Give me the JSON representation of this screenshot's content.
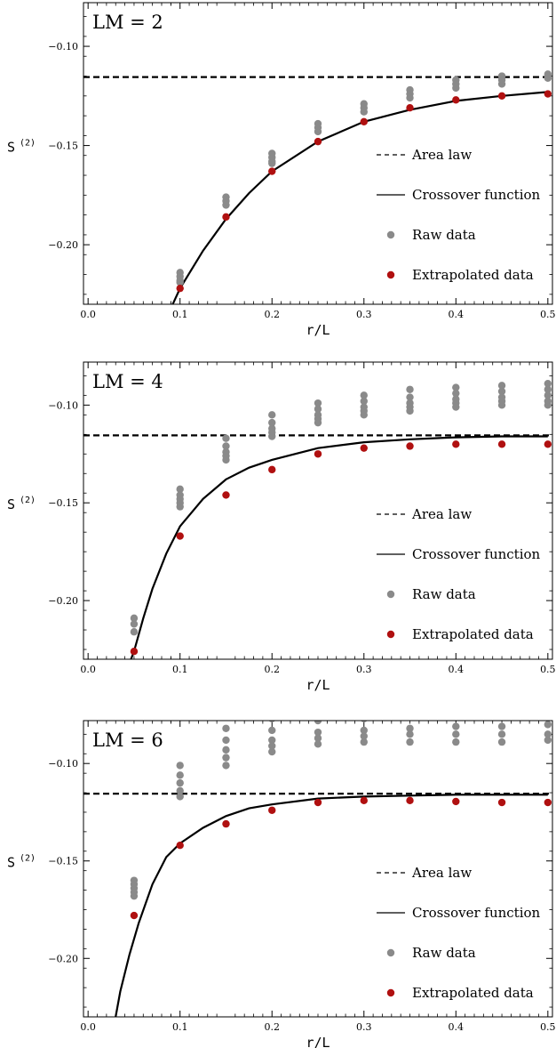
{
  "chart_data": [
    {
      "type": "scatter",
      "title": "LM = 2",
      "xlabel": "r/L",
      "ylabel": "S",
      "ylabel_superscript": "(2)",
      "xlim": [
        -0.005,
        0.505
      ],
      "ylim": [
        -0.23,
        -0.078
      ],
      "xticks": [
        "0.0",
        "0.1",
        "0.2",
        "0.3",
        "0.4",
        "0.5"
      ],
      "yticks": [
        "-0.10",
        "-0.15",
        "-0.20"
      ],
      "ytick_values": [
        -0.1,
        -0.15,
        -0.2
      ],
      "legend_position": "center-right",
      "area_law": -0.1155,
      "legend": {
        "area_law": "Area law",
        "crossover": "Crossover function",
        "raw": "Raw data",
        "extrapolated": "Extrapolated data"
      },
      "colors": {
        "raw": "#8a8a8a",
        "extrapolated": "#b01010",
        "line": "#000000"
      },
      "crossover": {
        "x": [
          0.09,
          0.1,
          0.125,
          0.15,
          0.175,
          0.2,
          0.25,
          0.3,
          0.35,
          0.4,
          0.45,
          0.5
        ],
        "y": [
          -0.232,
          -0.222,
          -0.203,
          -0.187,
          -0.174,
          -0.163,
          -0.148,
          -0.138,
          -0.132,
          -0.1275,
          -0.125,
          -0.123
        ]
      },
      "raw": {
        "x": [
          0.1,
          0.1,
          0.1,
          0.1,
          0.15,
          0.15,
          0.15,
          0.2,
          0.2,
          0.2,
          0.2,
          0.25,
          0.25,
          0.25,
          0.3,
          0.3,
          0.3,
          0.35,
          0.35,
          0.35,
          0.4,
          0.4,
          0.4,
          0.45,
          0.45,
          0.45,
          0.5,
          0.5
        ],
        "y": [
          -0.214,
          -0.216,
          -0.218,
          -0.219,
          -0.176,
          -0.178,
          -0.18,
          -0.154,
          -0.156,
          -0.158,
          -0.159,
          -0.139,
          -0.141,
          -0.143,
          -0.129,
          -0.131,
          -0.133,
          -0.122,
          -0.124,
          -0.126,
          -0.117,
          -0.119,
          -0.121,
          -0.115,
          -0.117,
          -0.119,
          -0.114,
          -0.116
        ]
      },
      "extrapolated": {
        "x": [
          0.1,
          0.15,
          0.2,
          0.25,
          0.3,
          0.35,
          0.4,
          0.45,
          0.5
        ],
        "y": [
          -0.222,
          -0.186,
          -0.163,
          -0.148,
          -0.138,
          -0.131,
          -0.127,
          -0.125,
          -0.124
        ]
      }
    },
    {
      "type": "scatter",
      "title": "LM = 4",
      "xlabel": "r/L",
      "ylabel": "S",
      "ylabel_superscript": "(2)",
      "xlim": [
        -0.005,
        0.505
      ],
      "ylim": [
        -0.23,
        -0.078
      ],
      "xticks": [
        "0.0",
        "0.1",
        "0.2",
        "0.3",
        "0.4",
        "0.5"
      ],
      "yticks": [
        "-0.10",
        "-0.15",
        "-0.20"
      ],
      "ytick_values": [
        -0.1,
        -0.15,
        -0.2
      ],
      "legend_position": "center-right",
      "area_law": -0.1155,
      "legend": {
        "area_law": "Area law",
        "crossover": "Crossover function",
        "raw": "Raw data",
        "extrapolated": "Extrapolated data"
      },
      "colors": {
        "raw": "#8a8a8a",
        "extrapolated": "#b01010",
        "line": "#000000"
      },
      "crossover": {
        "x": [
          0.045,
          0.05,
          0.06,
          0.07,
          0.085,
          0.1,
          0.125,
          0.15,
          0.175,
          0.2,
          0.25,
          0.3,
          0.35,
          0.4,
          0.45,
          0.5
        ],
        "y": [
          -0.232,
          -0.226,
          -0.209,
          -0.194,
          -0.176,
          -0.162,
          -0.148,
          -0.138,
          -0.132,
          -0.128,
          -0.122,
          -0.119,
          -0.1175,
          -0.1165,
          -0.116,
          -0.116
        ]
      },
      "raw": {
        "x": [
          0.05,
          0.05,
          0.05,
          0.1,
          0.1,
          0.1,
          0.1,
          0.1,
          0.15,
          0.15,
          0.15,
          0.15,
          0.15,
          0.2,
          0.2,
          0.2,
          0.2,
          0.2,
          0.25,
          0.25,
          0.25,
          0.25,
          0.25,
          0.3,
          0.3,
          0.3,
          0.3,
          0.3,
          0.35,
          0.35,
          0.35,
          0.35,
          0.35,
          0.4,
          0.4,
          0.4,
          0.4,
          0.4,
          0.45,
          0.45,
          0.45,
          0.45,
          0.45,
          0.5,
          0.5,
          0.5,
          0.5,
          0.5
        ],
        "y": [
          -0.209,
          -0.212,
          -0.216,
          -0.143,
          -0.146,
          -0.148,
          -0.15,
          -0.152,
          -0.117,
          -0.121,
          -0.124,
          -0.126,
          -0.128,
          -0.105,
          -0.109,
          -0.112,
          -0.114,
          -0.116,
          -0.099,
          -0.102,
          -0.105,
          -0.107,
          -0.109,
          -0.095,
          -0.098,
          -0.101,
          -0.103,
          -0.105,
          -0.092,
          -0.096,
          -0.099,
          -0.101,
          -0.103,
          -0.091,
          -0.094,
          -0.097,
          -0.099,
          -0.101,
          -0.09,
          -0.093,
          -0.096,
          -0.098,
          -0.1,
          -0.089,
          -0.092,
          -0.095,
          -0.098,
          -0.1
        ]
      },
      "extrapolated": {
        "x": [
          0.05,
          0.1,
          0.15,
          0.2,
          0.25,
          0.3,
          0.35,
          0.4,
          0.45,
          0.5
        ],
        "y": [
          -0.226,
          -0.167,
          -0.146,
          -0.133,
          -0.125,
          -0.122,
          -0.121,
          -0.12,
          -0.12,
          -0.12
        ]
      }
    },
    {
      "type": "scatter",
      "title": "LM = 6",
      "xlabel": "r/L",
      "ylabel": "S",
      "ylabel_superscript": "(2)",
      "xlim": [
        -0.005,
        0.505
      ],
      "ylim": [
        -0.23,
        -0.078
      ],
      "xticks": [
        "0.0",
        "0.1",
        "0.2",
        "0.3",
        "0.4",
        "0.5"
      ],
      "yticks": [
        "-0.10",
        "-0.15",
        "-0.20"
      ],
      "ytick_values": [
        -0.1,
        -0.15,
        -0.2
      ],
      "legend_position": "center-right",
      "area_law": -0.1155,
      "legend": {
        "area_law": "Area law",
        "crossover": "Crossover function",
        "raw": "Raw data",
        "extrapolated": "Extrapolated data"
      },
      "colors": {
        "raw": "#8a8a8a",
        "extrapolated": "#b01010",
        "line": "#000000"
      },
      "crossover": {
        "x": [
          0.03,
          0.035,
          0.045,
          0.055,
          0.07,
          0.085,
          0.1,
          0.125,
          0.15,
          0.175,
          0.2,
          0.25,
          0.3,
          0.35,
          0.4,
          0.45,
          0.5
        ],
        "y": [
          -0.23,
          -0.217,
          -0.198,
          -0.182,
          -0.162,
          -0.148,
          -0.141,
          -0.133,
          -0.127,
          -0.123,
          -0.121,
          -0.118,
          -0.117,
          -0.1165,
          -0.116,
          -0.116,
          -0.116
        ]
      },
      "raw": {
        "x": [
          0.05,
          0.05,
          0.05,
          0.05,
          0.05,
          0.1,
          0.1,
          0.1,
          0.1,
          0.1,
          0.15,
          0.15,
          0.15,
          0.15,
          0.15,
          0.2,
          0.2,
          0.2,
          0.2,
          0.2,
          0.25,
          0.25,
          0.25,
          0.25,
          0.25,
          0.3,
          0.3,
          0.3,
          0.3,
          0.3,
          0.35,
          0.35,
          0.35,
          0.35,
          0.35,
          0.4,
          0.4,
          0.4,
          0.4,
          0.4,
          0.45,
          0.45,
          0.45,
          0.45,
          0.45,
          0.5,
          0.5,
          0.5,
          0.5,
          0.5
        ],
        "y": [
          -0.16,
          -0.162,
          -0.164,
          -0.166,
          -0.168,
          -0.101,
          -0.106,
          -0.11,
          -0.114,
          -0.117,
          -0.082,
          -0.088,
          -0.093,
          -0.097,
          -0.101,
          -0.077,
          -0.083,
          -0.088,
          -0.091,
          -0.094,
          -0.074,
          -0.078,
          -0.084,
          -0.087,
          -0.09,
          -0.073,
          -0.077,
          -0.083,
          -0.086,
          -0.089,
          -0.072,
          -0.076,
          -0.082,
          -0.085,
          -0.089,
          -0.071,
          -0.075,
          -0.081,
          -0.085,
          -0.089,
          -0.071,
          -0.075,
          -0.081,
          -0.085,
          -0.089,
          -0.071,
          -0.075,
          -0.08,
          -0.085,
          -0.088
        ]
      },
      "extrapolated": {
        "x": [
          0.05,
          0.1,
          0.15,
          0.2,
          0.25,
          0.3,
          0.35,
          0.4,
          0.45,
          0.5
        ],
        "y": [
          -0.178,
          -0.142,
          -0.131,
          -0.124,
          -0.12,
          -0.119,
          -0.119,
          -0.1195,
          -0.12,
          -0.12
        ]
      }
    }
  ]
}
